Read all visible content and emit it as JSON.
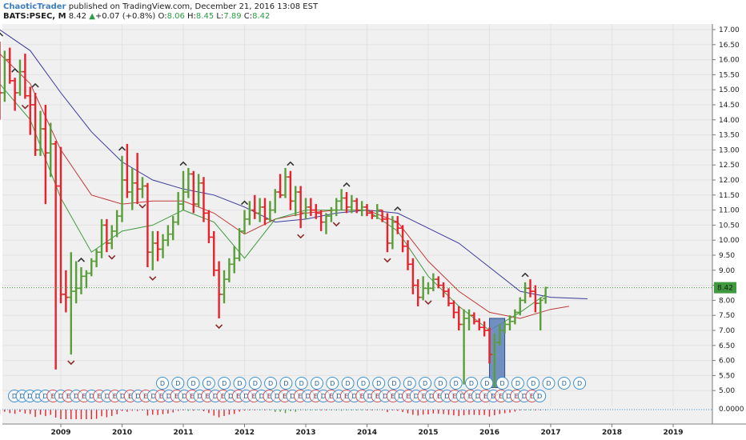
{
  "header": {
    "author": "ChaoticTrader",
    "published": "published on TradingView.com, December 21, 2016 13:08 EST",
    "symbol": "BATS:PSEC, M",
    "last": "8.42",
    "change_arrow": "▲",
    "change": "+0.07 (+0.8%)",
    "o_label": "O:",
    "o_value": "8.06",
    "h_label": "H:",
    "h_value": "8.45",
    "l_label": "L:",
    "l_value": "7.89",
    "c_label": "C:",
    "c_value": "8.42"
  },
  "colors": {
    "up": "#5a9e3a",
    "down": "#e8212b",
    "ma_blue": "#3a3a9c",
    "ma_red": "#c03a3a",
    "ma_green": "#3f9a3f",
    "price_line": "#3f9a3f",
    "dividend_circle": "#3b8fd0",
    "earnings_circle": "#d0505a",
    "highlight_box": "#5b7fb8"
  },
  "price_tag": "8.42",
  "oscillator_label": "0.0000",
  "chart_data": {
    "type": "ohlc",
    "interval": "monthly",
    "y_range": [
      4.7,
      17.1
    ],
    "y_ticks": [
      "5.00",
      "5.50",
      "6.00",
      "6.50",
      "7.00",
      "7.50",
      "8.00",
      "8.50",
      "9.00",
      "9.50",
      "10.00",
      "10.50",
      "11.00",
      "11.50",
      "12.00",
      "12.50",
      "13.00",
      "13.50",
      "14.00",
      "14.50",
      "15.00",
      "15.50",
      "16.00",
      "16.50",
      "17.00"
    ],
    "x_labels": [
      "2009",
      "2010",
      "2011",
      "2012",
      "2013",
      "2014",
      "2015",
      "2016",
      "2017",
      "2018",
      "2019"
    ],
    "x_range": [
      2008.0,
      2019.8
    ],
    "bars": [
      {
        "t": 2008.0,
        "o": 15.9,
        "h": 16.6,
        "l": 14.0,
        "c": 14.9
      },
      {
        "t": 2008.083,
        "o": 14.9,
        "h": 16.3,
        "l": 14.6,
        "c": 16.0
      },
      {
        "t": 2008.167,
        "o": 16.0,
        "h": 16.4,
        "l": 15.2,
        "c": 15.3
      },
      {
        "t": 2008.25,
        "o": 15.3,
        "h": 15.4,
        "l": 14.3,
        "c": 14.9
      },
      {
        "t": 2008.333,
        "o": 14.9,
        "h": 16.0,
        "l": 14.8,
        "c": 15.6
      },
      {
        "t": 2008.417,
        "o": 15.6,
        "h": 16.2,
        "l": 14.7,
        "c": 14.8
      },
      {
        "t": 2008.5,
        "o": 14.8,
        "h": 15.1,
        "l": 13.5,
        "c": 14.5
      },
      {
        "t": 2008.583,
        "o": 14.5,
        "h": 14.9,
        "l": 12.8,
        "c": 13.0
      },
      {
        "t": 2008.667,
        "o": 13.0,
        "h": 14.3,
        "l": 12.8,
        "c": 13.7
      },
      {
        "t": 2008.75,
        "o": 13.7,
        "h": 14.5,
        "l": 11.2,
        "c": 12.9
      },
      {
        "t": 2008.833,
        "o": 12.9,
        "h": 13.9,
        "l": 12.1,
        "c": 13.2
      },
      {
        "t": 2008.917,
        "o": 13.2,
        "h": 13.3,
        "l": 5.7,
        "c": 11.8
      },
      {
        "t": 2009.0,
        "o": 11.8,
        "h": 13.1,
        "l": 7.9,
        "c": 8.2
      },
      {
        "t": 2009.083,
        "o": 8.2,
        "h": 9.0,
        "l": 7.6,
        "c": 8.1
      },
      {
        "t": 2009.167,
        "o": 8.1,
        "h": 9.6,
        "l": 6.2,
        "c": 8.3
      },
      {
        "t": 2009.25,
        "o": 8.3,
        "h": 9.3,
        "l": 7.9,
        "c": 8.4
      },
      {
        "t": 2009.333,
        "o": 8.4,
        "h": 9.1,
        "l": 8.2,
        "c": 8.8
      },
      {
        "t": 2009.417,
        "o": 8.8,
        "h": 9.0,
        "l": 8.4,
        "c": 8.9
      },
      {
        "t": 2009.5,
        "o": 8.9,
        "h": 9.4,
        "l": 8.8,
        "c": 9.3
      },
      {
        "t": 2009.583,
        "o": 9.3,
        "h": 9.7,
        "l": 9.1,
        "c": 9.6
      },
      {
        "t": 2009.667,
        "o": 9.6,
        "h": 10.7,
        "l": 9.4,
        "c": 10.5
      },
      {
        "t": 2009.75,
        "o": 10.5,
        "h": 10.7,
        "l": 9.6,
        "c": 9.9
      },
      {
        "t": 2009.833,
        "o": 9.9,
        "h": 10.5,
        "l": 9.7,
        "c": 10.3
      },
      {
        "t": 2009.917,
        "o": 10.3,
        "h": 11.0,
        "l": 10.1,
        "c": 10.8
      },
      {
        "t": 2010.0,
        "o": 10.8,
        "h": 12.8,
        "l": 10.6,
        "c": 12.0
      },
      {
        "t": 2010.083,
        "o": 12.0,
        "h": 13.2,
        "l": 11.4,
        "c": 11.6
      },
      {
        "t": 2010.167,
        "o": 11.6,
        "h": 12.4,
        "l": 11.0,
        "c": 11.9
      },
      {
        "t": 2010.25,
        "o": 11.9,
        "h": 12.9,
        "l": 11.2,
        "c": 11.7
      },
      {
        "t": 2010.333,
        "o": 11.7,
        "h": 12.1,
        "l": 11.4,
        "c": 11.8
      },
      {
        "t": 2010.417,
        "o": 11.8,
        "h": 11.9,
        "l": 9.1,
        "c": 9.6
      },
      {
        "t": 2010.5,
        "o": 9.6,
        "h": 10.3,
        "l": 9.0,
        "c": 9.9
      },
      {
        "t": 2010.583,
        "o": 9.9,
        "h": 10.3,
        "l": 9.3,
        "c": 9.7
      },
      {
        "t": 2010.667,
        "o": 9.7,
        "h": 10.2,
        "l": 9.4,
        "c": 10.0
      },
      {
        "t": 2010.75,
        "o": 10.0,
        "h": 10.5,
        "l": 9.8,
        "c": 10.2
      },
      {
        "t": 2010.833,
        "o": 10.2,
        "h": 10.8,
        "l": 10.0,
        "c": 10.6
      },
      {
        "t": 2010.917,
        "o": 10.6,
        "h": 11.6,
        "l": 10.5,
        "c": 11.2
      },
      {
        "t": 2011.0,
        "o": 11.2,
        "h": 12.3,
        "l": 11.0,
        "c": 11.6
      },
      {
        "t": 2011.083,
        "o": 11.6,
        "h": 12.4,
        "l": 11.4,
        "c": 12.2
      },
      {
        "t": 2011.167,
        "o": 12.2,
        "h": 12.3,
        "l": 10.9,
        "c": 11.2
      },
      {
        "t": 2011.25,
        "o": 11.2,
        "h": 12.2,
        "l": 11.1,
        "c": 11.9
      },
      {
        "t": 2011.333,
        "o": 11.9,
        "h": 12.1,
        "l": 10.6,
        "c": 10.9
      },
      {
        "t": 2011.417,
        "o": 10.9,
        "h": 11.0,
        "l": 9.9,
        "c": 10.1
      },
      {
        "t": 2011.5,
        "o": 10.1,
        "h": 10.3,
        "l": 8.8,
        "c": 9.0
      },
      {
        "t": 2011.583,
        "o": 9.0,
        "h": 9.3,
        "l": 7.4,
        "c": 8.2
      },
      {
        "t": 2011.667,
        "o": 8.2,
        "h": 9.0,
        "l": 7.9,
        "c": 8.7
      },
      {
        "t": 2011.75,
        "o": 8.7,
        "h": 9.4,
        "l": 8.6,
        "c": 9.2
      },
      {
        "t": 2011.833,
        "o": 9.2,
        "h": 9.8,
        "l": 8.9,
        "c": 9.4
      },
      {
        "t": 2011.917,
        "o": 9.4,
        "h": 10.4,
        "l": 9.3,
        "c": 10.3
      },
      {
        "t": 2012.0,
        "o": 10.3,
        "h": 11.0,
        "l": 10.2,
        "c": 10.7
      },
      {
        "t": 2012.083,
        "o": 10.7,
        "h": 11.3,
        "l": 10.5,
        "c": 11.0
      },
      {
        "t": 2012.167,
        "o": 11.0,
        "h": 11.5,
        "l": 10.7,
        "c": 10.9
      },
      {
        "t": 2012.25,
        "o": 10.9,
        "h": 11.4,
        "l": 10.6,
        "c": 11.1
      },
      {
        "t": 2012.333,
        "o": 11.1,
        "h": 11.4,
        "l": 10.5,
        "c": 10.7
      },
      {
        "t": 2012.417,
        "o": 10.7,
        "h": 11.3,
        "l": 10.6,
        "c": 11.0
      },
      {
        "t": 2012.5,
        "o": 11.0,
        "h": 11.7,
        "l": 10.9,
        "c": 11.6
      },
      {
        "t": 2012.583,
        "o": 11.6,
        "h": 12.2,
        "l": 11.4,
        "c": 11.5
      },
      {
        "t": 2012.667,
        "o": 11.5,
        "h": 12.4,
        "l": 11.4,
        "c": 12.1
      },
      {
        "t": 2012.75,
        "o": 12.1,
        "h": 12.3,
        "l": 11.0,
        "c": 11.3
      },
      {
        "t": 2012.833,
        "o": 11.3,
        "h": 11.8,
        "l": 10.8,
        "c": 11.6
      },
      {
        "t": 2012.917,
        "o": 11.6,
        "h": 11.8,
        "l": 10.4,
        "c": 10.9
      },
      {
        "t": 2013.0,
        "o": 10.9,
        "h": 11.4,
        "l": 10.7,
        "c": 11.1
      },
      {
        "t": 2013.083,
        "o": 11.1,
        "h": 11.4,
        "l": 10.8,
        "c": 11.0
      },
      {
        "t": 2013.167,
        "o": 11.0,
        "h": 11.2,
        "l": 10.7,
        "c": 10.9
      },
      {
        "t": 2013.25,
        "o": 10.9,
        "h": 11.0,
        "l": 10.3,
        "c": 10.6
      },
      {
        "t": 2013.333,
        "o": 10.6,
        "h": 10.9,
        "l": 10.2,
        "c": 10.8
      },
      {
        "t": 2013.417,
        "o": 10.8,
        "h": 11.1,
        "l": 10.6,
        "c": 11.0
      },
      {
        "t": 2013.5,
        "o": 11.0,
        "h": 11.4,
        "l": 10.8,
        "c": 11.3
      },
      {
        "t": 2013.583,
        "o": 11.3,
        "h": 11.7,
        "l": 11.0,
        "c": 11.4
      },
      {
        "t": 2013.667,
        "o": 11.4,
        "h": 11.6,
        "l": 10.9,
        "c": 11.1
      },
      {
        "t": 2013.75,
        "o": 11.1,
        "h": 11.5,
        "l": 10.9,
        "c": 11.3
      },
      {
        "t": 2013.833,
        "o": 11.3,
        "h": 11.4,
        "l": 10.9,
        "c": 11.0
      },
      {
        "t": 2013.917,
        "o": 11.0,
        "h": 11.3,
        "l": 10.8,
        "c": 11.1
      },
      {
        "t": 2014.0,
        "o": 11.1,
        "h": 11.2,
        "l": 10.8,
        "c": 10.9
      },
      {
        "t": 2014.083,
        "o": 10.9,
        "h": 11.0,
        "l": 10.7,
        "c": 10.8
      },
      {
        "t": 2014.167,
        "o": 10.8,
        "h": 11.2,
        "l": 10.7,
        "c": 11.0
      },
      {
        "t": 2014.25,
        "o": 11.0,
        "h": 11.0,
        "l": 10.6,
        "c": 10.7
      },
      {
        "t": 2014.333,
        "o": 10.7,
        "h": 10.9,
        "l": 9.6,
        "c": 9.9
      },
      {
        "t": 2014.417,
        "o": 9.9,
        "h": 10.8,
        "l": 9.7,
        "c": 10.6
      },
      {
        "t": 2014.5,
        "o": 10.6,
        "h": 10.8,
        "l": 10.2,
        "c": 10.4
      },
      {
        "t": 2014.583,
        "o": 10.4,
        "h": 10.5,
        "l": 9.6,
        "c": 9.8
      },
      {
        "t": 2014.667,
        "o": 9.8,
        "h": 10.0,
        "l": 9.0,
        "c": 9.2
      },
      {
        "t": 2014.75,
        "o": 9.2,
        "h": 9.4,
        "l": 8.2,
        "c": 8.5
      },
      {
        "t": 2014.833,
        "o": 8.5,
        "h": 8.7,
        "l": 7.8,
        "c": 8.1
      },
      {
        "t": 2014.917,
        "o": 8.1,
        "h": 8.8,
        "l": 8.0,
        "c": 8.4
      },
      {
        "t": 2015.0,
        "o": 8.4,
        "h": 8.6,
        "l": 8.2,
        "c": 8.4
      },
      {
        "t": 2015.083,
        "o": 8.4,
        "h": 8.9,
        "l": 8.3,
        "c": 8.7
      },
      {
        "t": 2015.167,
        "o": 8.7,
        "h": 8.8,
        "l": 8.4,
        "c": 8.5
      },
      {
        "t": 2015.25,
        "o": 8.5,
        "h": 8.6,
        "l": 8.1,
        "c": 8.3
      },
      {
        "t": 2015.333,
        "o": 8.3,
        "h": 8.4,
        "l": 7.8,
        "c": 7.9
      },
      {
        "t": 2015.417,
        "o": 7.9,
        "h": 8.0,
        "l": 7.4,
        "c": 7.6
      },
      {
        "t": 2015.5,
        "o": 7.6,
        "h": 7.8,
        "l": 7.0,
        "c": 7.2
      },
      {
        "t": 2015.583,
        "o": 7.2,
        "h": 7.7,
        "l": 5.2,
        "c": 7.4
      },
      {
        "t": 2015.667,
        "o": 7.4,
        "h": 7.7,
        "l": 7.0,
        "c": 7.5
      },
      {
        "t": 2015.75,
        "o": 7.5,
        "h": 7.6,
        "l": 7.2,
        "c": 7.3
      },
      {
        "t": 2015.833,
        "o": 7.3,
        "h": 7.4,
        "l": 7.0,
        "c": 7.1
      },
      {
        "t": 2015.917,
        "o": 7.1,
        "h": 7.3,
        "l": 6.8,
        "c": 7.0
      },
      {
        "t": 2016.0,
        "o": 7.0,
        "h": 7.1,
        "l": 5.9,
        "c": 6.2
      },
      {
        "t": 2016.083,
        "o": 6.2,
        "h": 6.9,
        "l": 5.1,
        "c": 6.6
      },
      {
        "t": 2016.167,
        "o": 6.6,
        "h": 7.2,
        "l": 6.5,
        "c": 7.0
      },
      {
        "t": 2016.25,
        "o": 7.0,
        "h": 7.3,
        "l": 6.9,
        "c": 7.2
      },
      {
        "t": 2016.333,
        "o": 7.2,
        "h": 7.5,
        "l": 7.0,
        "c": 7.3
      },
      {
        "t": 2016.417,
        "o": 7.3,
        "h": 7.7,
        "l": 7.2,
        "c": 7.6
      },
      {
        "t": 2016.5,
        "o": 7.6,
        "h": 8.1,
        "l": 7.5,
        "c": 8.0
      },
      {
        "t": 2016.583,
        "o": 8.0,
        "h": 8.6,
        "l": 7.9,
        "c": 8.4
      },
      {
        "t": 2016.667,
        "o": 8.4,
        "h": 8.7,
        "l": 8.1,
        "c": 8.3
      },
      {
        "t": 2016.75,
        "o": 8.3,
        "h": 8.5,
        "l": 7.6,
        "c": 7.9
      },
      {
        "t": 2016.833,
        "o": 7.9,
        "h": 8.1,
        "l": 7.0,
        "c": 8.0
      },
      {
        "t": 2016.917,
        "o": 8.06,
        "h": 8.45,
        "l": 7.89,
        "c": 8.42
      }
    ],
    "ma_blue": [
      [
        2008.0,
        17.0
      ],
      [
        2008.5,
        16.3
      ],
      [
        2009.0,
        14.9
      ],
      [
        2009.5,
        13.6
      ],
      [
        2010.0,
        12.6
      ],
      [
        2010.5,
        12.0
      ],
      [
        2011.0,
        11.7
      ],
      [
        2011.5,
        11.5
      ],
      [
        2012.0,
        11.1
      ],
      [
        2012.5,
        10.6
      ],
      [
        2013.0,
        10.7
      ],
      [
        2013.5,
        10.9
      ],
      [
        2014.0,
        11.0
      ],
      [
        2014.5,
        10.9
      ],
      [
        2015.0,
        10.4
      ],
      [
        2015.5,
        9.9
      ],
      [
        2016.0,
        9.1
      ],
      [
        2016.5,
        8.3
      ],
      [
        2017.0,
        8.1
      ],
      [
        2017.6,
        8.05
      ]
    ],
    "ma_red": [
      [
        2008.0,
        16.2
      ],
      [
        2008.5,
        15.2
      ],
      [
        2009.0,
        13.0
      ],
      [
        2009.5,
        11.5
      ],
      [
        2010.0,
        11.2
      ],
      [
        2010.5,
        11.3
      ],
      [
        2011.0,
        11.3
      ],
      [
        2011.5,
        10.9
      ],
      [
        2012.0,
        10.2
      ],
      [
        2012.5,
        10.7
      ],
      [
        2013.0,
        10.9
      ],
      [
        2013.5,
        11.0
      ],
      [
        2014.0,
        11.0
      ],
      [
        2014.5,
        10.6
      ],
      [
        2015.0,
        9.3
      ],
      [
        2015.5,
        8.3
      ],
      [
        2016.0,
        7.6
      ],
      [
        2016.5,
        7.4
      ],
      [
        2017.0,
        7.7
      ],
      [
        2017.3,
        7.8
      ]
    ],
    "ma_green": [
      [
        2008.0,
        15.2
      ],
      [
        2008.5,
        14.0
      ],
      [
        2009.0,
        11.4
      ],
      [
        2009.5,
        9.6
      ],
      [
        2010.0,
        10.3
      ],
      [
        2010.5,
        10.5
      ],
      [
        2011.0,
        11.0
      ],
      [
        2011.5,
        10.6
      ],
      [
        2012.0,
        9.4
      ],
      [
        2012.5,
        10.7
      ],
      [
        2013.0,
        11.0
      ],
      [
        2013.5,
        11.0
      ],
      [
        2014.0,
        11.0
      ],
      [
        2014.5,
        10.3
      ],
      [
        2015.0,
        8.8
      ],
      [
        2015.5,
        7.8
      ],
      [
        2016.0,
        7.0
      ],
      [
        2016.5,
        7.6
      ],
      [
        2016.92,
        8.2
      ]
    ],
    "fractal_up": [
      2008.0,
      2008.25,
      2008.58,
      2009.33,
      2010.0,
      2011.0,
      2012.0,
      2012.75,
      2013.67,
      2014.5,
      2016.58
    ],
    "fractal_down": [
      2008.42,
      2009.17,
      2009.83,
      2010.33,
      2010.5,
      2011.58,
      2012.92,
      2013.5,
      2014.33,
      2015.0,
      2015.58,
      2016.08
    ],
    "highlight": {
      "t0": 2016.0,
      "t1": 2016.25,
      "y0": 5.1,
      "y1": 7.4
    },
    "events_row1": [
      "D",
      "D",
      "D",
      "D",
      "D",
      "D",
      "D",
      "D",
      "D",
      "D",
      "D",
      "D",
      "D",
      "D",
      "D",
      "D",
      "D",
      "D",
      "D",
      "D",
      "D",
      "D",
      "D",
      "D",
      "D",
      "D",
      "D",
      "D"
    ],
    "events_row2": [
      "D",
      "D",
      "D",
      "D",
      "D",
      "E",
      "D",
      "E",
      "D",
      "E",
      "D",
      "E",
      "D",
      "E",
      "D",
      "E",
      "D",
      "E",
      "D",
      "E",
      "D",
      "E",
      "D",
      "E",
      "D",
      "E",
      "D",
      "E",
      "D",
      "E",
      "D",
      "E",
      "D",
      "E",
      "D",
      "E",
      "D",
      "E",
      "D",
      "E",
      "D",
      "E",
      "D",
      "E",
      "D",
      "E",
      "D",
      "E",
      "D",
      "E",
      "D",
      "E",
      "D",
      "E",
      "D",
      "E",
      "D",
      "E",
      "D",
      "E",
      "D",
      "E",
      "D",
      "E",
      "D",
      "E",
      "D",
      "E",
      "D"
    ]
  }
}
